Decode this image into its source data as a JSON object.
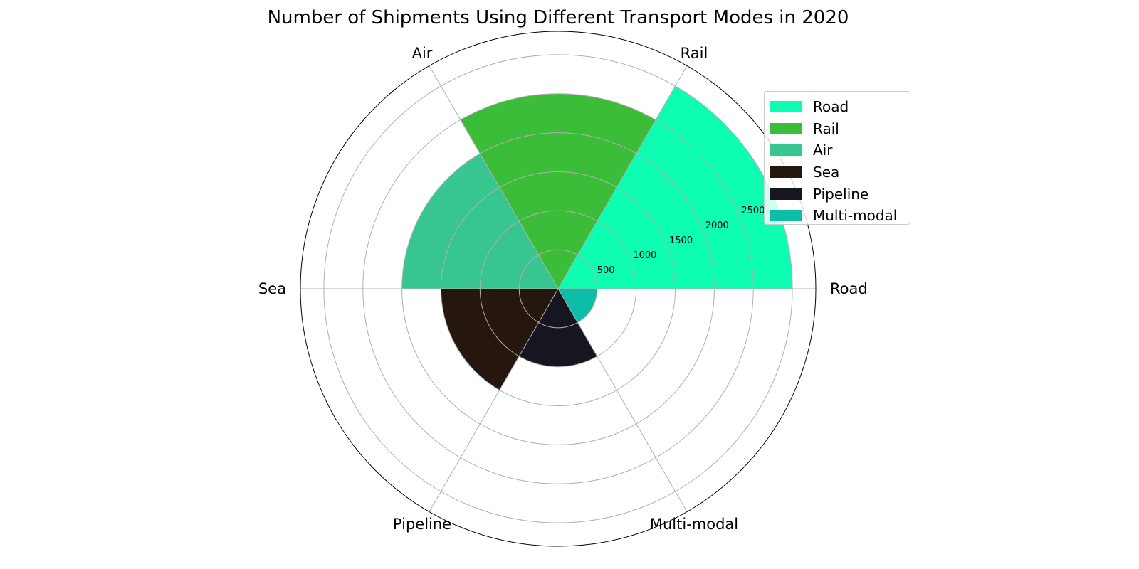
{
  "chart_data": {
    "type": "polar-bar",
    "title": "Number of Shipments Using Different Transport Modes in 2020",
    "categories": [
      "Road",
      "Rail",
      "Air",
      "Sea",
      "Pipeline",
      "Multi-modal"
    ],
    "values": [
      3000,
      2500,
      2000,
      1500,
      1000,
      500
    ],
    "colors": [
      "#0dfdb3",
      "#3cbd3a",
      "#38c690",
      "#25170d",
      "#17151f",
      "#0ebda8"
    ],
    "radial_ticks": [
      500,
      1000,
      1500,
      2000,
      2500,
      3000
    ],
    "radial_tick_labels": [
      "500",
      "1000",
      "1500",
      "2000",
      "2500",
      "3000"
    ],
    "rlim": [
      0,
      3300
    ],
    "grid": true,
    "legend_position": "top-right"
  }
}
